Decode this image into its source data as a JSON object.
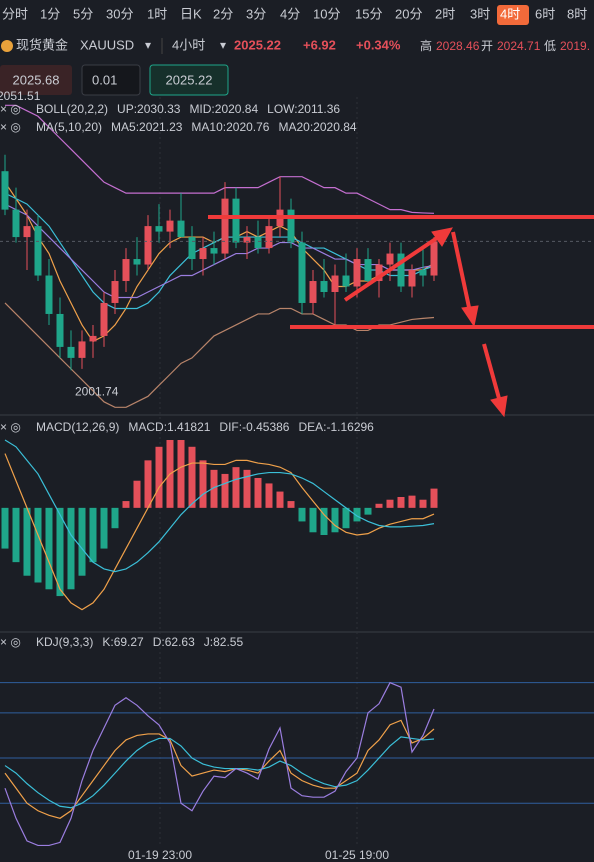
{
  "timeframes": [
    "分时",
    "1分",
    "5分",
    "30分",
    "1时",
    "日K",
    "2分",
    "3分",
    "4分",
    "10分",
    "15分",
    "20分",
    "2时",
    "3时",
    "4时",
    "6时",
    "8时"
  ],
  "active_timeframe": "4时",
  "header": {
    "name": "现货黄金",
    "symbol": "XAUUSD",
    "period": "4小时",
    "price": "2025.22",
    "change": "+6.92",
    "change_pct": "+0.34%",
    "high_label": "高",
    "high": "2028.46",
    "open_label": "开",
    "open": "2024.71",
    "low_label": "低",
    "low": "2019."
  },
  "order": {
    "sell": "2025.68",
    "qty": "0.01",
    "buy": "2025.22"
  },
  "time_labels": [
    "01-19 23:00",
    "01-25 19:00"
  ],
  "chart_data": [
    {
      "type": "candlestick",
      "yticks": [
        2051.51
      ],
      "ylim": [
        1993.6,
        2051.51
      ],
      "legend_boll": [
        "BOLL(20,2,2)",
        "UP:2030.33",
        "MID:2020.84",
        "LOW:2011.36"
      ],
      "legend_ma": [
        "MA(5,10,20)",
        "MA5:2021.23",
        "MA10:2020.76",
        "MA20:2020.84"
      ],
      "up_color": "#e5505a",
      "down_color": "#1fa68a",
      "candles": [
        {
          "open": 2038,
          "high": 2041,
          "low": 2030,
          "close": 2031
        },
        {
          "open": 2031,
          "high": 2035,
          "low": 2025,
          "close": 2026
        },
        {
          "open": 2026,
          "high": 2031,
          "low": 2020,
          "close": 2028
        },
        {
          "open": 2028,
          "high": 2030,
          "low": 2018,
          "close": 2019
        },
        {
          "open": 2019,
          "high": 2022,
          "low": 2010,
          "close": 2012
        },
        {
          "open": 2012,
          "high": 2015,
          "low": 2004,
          "close": 2006
        },
        {
          "open": 2006,
          "high": 2009,
          "low": 2001.74,
          "close": 2004
        },
        {
          "open": 2004,
          "high": 2009,
          "low": 2002,
          "close": 2007
        },
        {
          "open": 2007,
          "high": 2010,
          "low": 2004,
          "close": 2008
        },
        {
          "open": 2008,
          "high": 2016,
          "low": 2006,
          "close": 2014
        },
        {
          "open": 2014,
          "high": 2020,
          "low": 2012,
          "close": 2018
        },
        {
          "open": 2018,
          "high": 2024,
          "low": 2016,
          "close": 2022
        },
        {
          "open": 2022,
          "high": 2026,
          "low": 2019,
          "close": 2021
        },
        {
          "open": 2021,
          "high": 2030,
          "low": 2020,
          "close": 2028
        },
        {
          "open": 2028,
          "high": 2032,
          "low": 2025,
          "close": 2027
        },
        {
          "open": 2027,
          "high": 2031,
          "low": 2024,
          "close": 2029
        },
        {
          "open": 2029,
          "high": 2034,
          "low": 2026,
          "close": 2026
        },
        {
          "open": 2026,
          "high": 2028,
          "low": 2020,
          "close": 2022
        },
        {
          "open": 2022,
          "high": 2026,
          "low": 2019,
          "close": 2024
        },
        {
          "open": 2024,
          "high": 2027,
          "low": 2021,
          "close": 2023
        },
        {
          "open": 2023,
          "high": 2036,
          "low": 2022,
          "close": 2033
        },
        {
          "open": 2033,
          "high": 2035,
          "low": 2024,
          "close": 2025
        },
        {
          "open": 2025,
          "high": 2028,
          "low": 2022,
          "close": 2026
        },
        {
          "open": 2026,
          "high": 2029,
          "low": 2023,
          "close": 2024
        },
        {
          "open": 2024,
          "high": 2030,
          "low": 2023,
          "close": 2028
        },
        {
          "open": 2028,
          "high": 2037,
          "low": 2026,
          "close": 2031
        },
        {
          "open": 2031,
          "high": 2033,
          "low": 2024,
          "close": 2025
        },
        {
          "open": 2025,
          "high": 2027,
          "low": 2012,
          "close": 2014
        },
        {
          "open": 2014,
          "high": 2020,
          "low": 2012,
          "close": 2018
        },
        {
          "open": 2018,
          "high": 2022,
          "low": 2015,
          "close": 2016
        },
        {
          "open": 2016,
          "high": 2021,
          "low": 2010,
          "close": 2019
        },
        {
          "open": 2019,
          "high": 2023,
          "low": 2016,
          "close": 2017
        },
        {
          "open": 2017,
          "high": 2024,
          "low": 2015,
          "close": 2022
        },
        {
          "open": 2022,
          "high": 2024,
          "low": 2017,
          "close": 2018
        },
        {
          "open": 2018,
          "high": 2022,
          "low": 2015,
          "close": 2021
        },
        {
          "open": 2021,
          "high": 2025,
          "low": 2018,
          "close": 2023
        },
        {
          "open": 2023,
          "high": 2025,
          "low": 2016,
          "close": 2017
        },
        {
          "open": 2017,
          "high": 2021,
          "low": 2015,
          "close": 2020
        },
        {
          "open": 2020,
          "high": 2024,
          "low": 2017,
          "close": 2019
        },
        {
          "open": 2019,
          "high": 2026,
          "low": 2018,
          "close": 2025.22
        }
      ],
      "series": [
        {
          "name": "UP",
          "color": "#c46fd0",
          "values": [
            2050,
            2050,
            2049,
            2048,
            2046,
            2044,
            2042,
            2040,
            2038,
            2036,
            2035,
            2034,
            2034,
            2034,
            2034,
            2034,
            2034,
            2034,
            2034,
            2034,
            2035,
            2035,
            2035,
            2035,
            2036,
            2037,
            2037,
            2037,
            2036,
            2035,
            2035,
            2034,
            2034,
            2033,
            2032,
            2031,
            2031,
            2030.5,
            2030.4,
            2030.33
          ]
        },
        {
          "name": "LOW",
          "color": "#b8846a",
          "values": [
            2014,
            2012,
            2010,
            2008,
            2006,
            2004,
            2002,
            2000,
            1998,
            1996,
            1995,
            1995,
            1996,
            1997,
            1999,
            2001,
            2003,
            2004,
            2006,
            2008,
            2009,
            2010,
            2011,
            2012,
            2012,
            2013,
            2013,
            2012,
            2012,
            2011,
            2010,
            2010,
            2009,
            2009,
            2010,
            2010,
            2010.5,
            2011,
            2011.2,
            2011.36
          ]
        },
        {
          "name": "MA5",
          "color": "#f0a14a",
          "values": [
            2036,
            2033,
            2030,
            2026,
            2023,
            2018,
            2014,
            2010,
            2007,
            2008,
            2010,
            2013,
            2017,
            2020,
            2023,
            2025,
            2026,
            2026,
            2026,
            2025,
            2026,
            2026,
            2027,
            2026,
            2027,
            2028,
            2027,
            2024,
            2022,
            2020,
            2017,
            2017,
            2018,
            2018,
            2019,
            2020,
            2020,
            2020,
            2020,
            2021.23
          ]
        },
        {
          "name": "MA10",
          "color": "#3bbfd8",
          "values": [
            2034,
            2033,
            2032,
            2030,
            2028,
            2025,
            2022,
            2019,
            2016,
            2014,
            2013,
            2013,
            2013,
            2014,
            2016,
            2019,
            2021,
            2023,
            2024,
            2025,
            2026,
            2026,
            2026,
            2026,
            2026,
            2026,
            2026,
            2025,
            2024,
            2024,
            2023,
            2022,
            2021,
            2020,
            2020,
            2019,
            2019,
            2019,
            2020,
            2020.76
          ]
        },
        {
          "name": "MA20",
          "color": "#9b7ee0",
          "values": [
            2032,
            2031,
            2030,
            2028,
            2026,
            2024,
            2022,
            2020,
            2018,
            2016,
            2015,
            2015,
            2015,
            2016,
            2017,
            2018,
            2019,
            2019,
            2020,
            2021,
            2022,
            2023,
            2023,
            2024,
            2024,
            2025,
            2025,
            2024,
            2024,
            2023,
            2022,
            2022,
            2021,
            2021,
            2021,
            2020,
            2020,
            2020,
            2020.5,
            2020.84
          ]
        }
      ]
    },
    {
      "type": "macd",
      "ylim": [
        -9,
        5
      ],
      "legend": [
        "MACD(12,26,9)",
        "MACD:1.41821",
        "DIF:-0.45386",
        "DEA:-1.16296"
      ],
      "histogram": [
        -3,
        -4,
        -5,
        -5.5,
        -6,
        -6.5,
        -6,
        -5,
        -4,
        -3,
        -1.5,
        0.5,
        2,
        3.5,
        4.5,
        5,
        5,
        4.5,
        3.5,
        2.8,
        2.5,
        3,
        2.8,
        2.2,
        1.8,
        1.2,
        0.5,
        -1,
        -1.8,
        -2,
        -1.8,
        -1.5,
        -1,
        -0.5,
        0.3,
        0.6,
        0.8,
        0.9,
        0.6,
        1.41821
      ],
      "up_color": "#e5505a",
      "down_color": "#1fa68a",
      "series": [
        {
          "name": "DIF",
          "color": "#f0a14a",
          "values": [
            4,
            2,
            0,
            -2,
            -4,
            -6,
            -7,
            -7.5,
            -7,
            -6,
            -4.5,
            -3,
            -1.5,
            0,
            1.5,
            2.5,
            3,
            3.3,
            3.3,
            3.2,
            3.2,
            3.5,
            3.5,
            3.3,
            3.2,
            3,
            2.6,
            1.5,
            0.5,
            -0.5,
            -1.3,
            -1.8,
            -2,
            -1.9,
            -1.5,
            -1.2,
            -1,
            -0.8,
            -0.8,
            -0.45386
          ]
        },
        {
          "name": "DEA",
          "color": "#3bbfd8",
          "values": [
            5,
            4.5,
            3.5,
            2.5,
            1,
            -0.5,
            -2,
            -3,
            -4,
            -4.5,
            -4.7,
            -4.5,
            -4,
            -3.3,
            -2.5,
            -1.5,
            -0.5,
            0.3,
            1,
            1.5,
            1.8,
            2.1,
            2.3,
            2.5,
            2.6,
            2.6,
            2.5,
            2.2,
            1.8,
            1.2,
            0.6,
            0,
            -0.6,
            -1,
            -1.3,
            -1.4,
            -1.4,
            -1.35,
            -1.3,
            -1.16296
          ]
        }
      ]
    },
    {
      "type": "kdj",
      "ylim": [
        -19,
        127
      ],
      "levels": [
        100,
        80,
        50,
        20
      ],
      "legend": [
        "KDJ(9,3,3)",
        "K:69.27",
        "D:62.63",
        "J:82.55"
      ],
      "series": [
        {
          "name": "K",
          "color": "#f0a14a",
          "values": [
            40,
            30,
            20,
            15,
            12,
            10,
            15,
            25,
            35,
            45,
            55,
            62,
            65,
            66,
            66,
            62,
            45,
            38,
            40,
            42,
            41,
            43,
            42,
            40,
            48,
            55,
            40,
            35,
            32,
            30,
            30,
            35,
            40,
            55,
            62,
            72,
            75,
            60,
            63,
            69.27
          ]
        },
        {
          "name": "D",
          "color": "#3bbfd8",
          "values": [
            45,
            40,
            33,
            27,
            22,
            18,
            17,
            20,
            25,
            32,
            40,
            48,
            55,
            60,
            63,
            63,
            58,
            50,
            46,
            44,
            43,
            43,
            43,
            42,
            44,
            48,
            45,
            40,
            36,
            33,
            31,
            32,
            35,
            42,
            50,
            58,
            64,
            63,
            62,
            62.63
          ]
        },
        {
          "name": "J",
          "color": "#9b7ee0",
          "values": [
            30,
            10,
            -5,
            -8,
            -8,
            -6,
            10,
            35,
            55,
            70,
            85,
            90,
            85,
            78,
            72,
            60,
            20,
            15,
            28,
            38,
            37,
            43,
            40,
            36,
            56,
            70,
            30,
            25,
            24,
            24,
            28,
            41,
            50,
            80,
            86,
            100,
            97,
            54,
            65,
            82.55
          ]
        }
      ]
    }
  ]
}
